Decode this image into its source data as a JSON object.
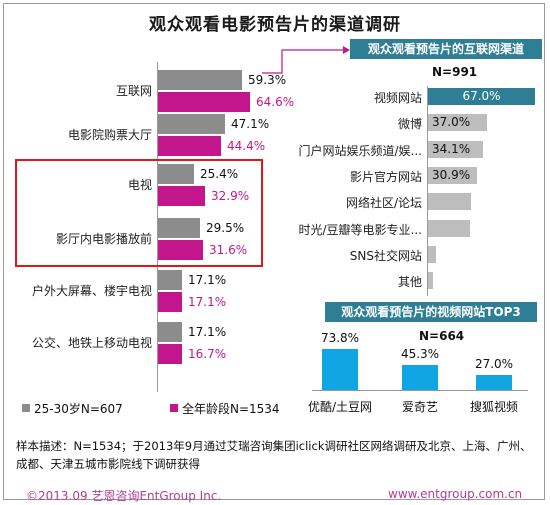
{
  "title": "观众观看电影预告片的渠道调研",
  "colors": {
    "age_2530": "#8c8c8c",
    "all_ages": "#c4168c",
    "web_accent": "#2e7e95",
    "web_bar": "#bdbdbd",
    "video_bar": "#10a6e3",
    "highlight": "#e0181e"
  },
  "legend": [
    {
      "label": "25-30岁N=607",
      "color": "#8c8c8c"
    },
    {
      "label": "全年龄段N=1534",
      "color": "#c4168c"
    }
  ],
  "internet_panel": {
    "header": "观众观看预告片的互联网渠道",
    "n_label": "N=991"
  },
  "video_panel": {
    "header": "观众观看预告片的视频网站TOP3",
    "n_label": "N=664"
  },
  "note": "样本描述：N=1534；于2013年9月通过艾瑞咨询集团iclick调研社区网络调研及北京、上海、广州、成都、天津五城市影院线下调研获得",
  "footer": {
    "left": "©2013.09  艺恩咨询EntGroup Inc.",
    "right": "www.entgroup.com.cn"
  },
  "chart_data": [
    {
      "type": "bar",
      "orientation": "horizontal",
      "categories": [
        "互联网",
        "电影院购票大厅",
        "电视",
        "影厅内电影播放前",
        "户外大屏幕、楼宇电视",
        "公交、地铁上移动电视"
      ],
      "series": [
        {
          "name": "25-30岁N=607",
          "values": [
            59.3,
            47.1,
            25.4,
            29.5,
            17.1,
            17.1
          ],
          "labels": [
            "59.3%",
            "47.1%",
            "25.4%",
            "29.5%",
            "17.1%",
            "17.1%"
          ]
        },
        {
          "name": "全年龄段N=1534",
          "values": [
            64.6,
            44.4,
            32.9,
            31.6,
            17.1,
            16.7
          ],
          "labels": [
            "64.6%",
            "44.4%",
            "32.9%",
            "31.6%",
            "17.1%",
            "16.7%"
          ]
        }
      ],
      "highlighted_categories": [
        "电视",
        "影厅内电影播放前"
      ]
    },
    {
      "type": "bar",
      "orientation": "horizontal",
      "title": "观众观看预告片的互联网渠道",
      "categories": [
        "视频网站",
        "微博",
        "门户网站娱乐频道/娱...",
        "影片官方网站",
        "网络社区/论坛",
        "时光/豆瓣等电影专业...",
        "SNS社交网站",
        "其他"
      ],
      "values": [
        67.0,
        37.0,
        34.1,
        30.9,
        null,
        null,
        null,
        null
      ],
      "labels": [
        "67.0%",
        "37.0%",
        "34.1%",
        "30.9%",
        "",
        "",
        "",
        ""
      ],
      "estimated_values": [
        67.0,
        37.0,
        34.1,
        30.9,
        27.0,
        26.0,
        5.0,
        3.0
      ]
    },
    {
      "type": "bar",
      "orientation": "vertical",
      "title": "观众观看预告片的视频网站TOP3",
      "categories": [
        "优酷/土豆网",
        "爱奇艺",
        "搜狐视频"
      ],
      "values": [
        73.8,
        45.3,
        27.0
      ],
      "labels": [
        "73.8%",
        "45.3%",
        "27.0%"
      ]
    }
  ]
}
